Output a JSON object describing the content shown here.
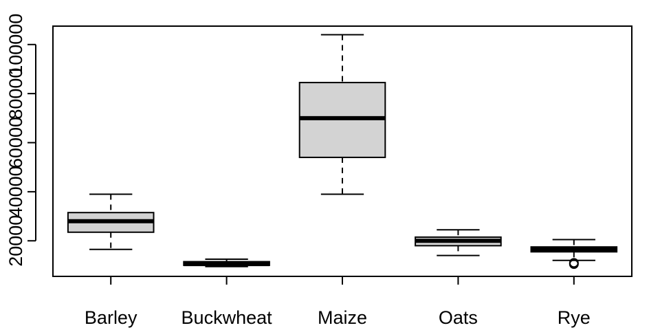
{
  "chart_data": {
    "type": "boxplot",
    "title": "",
    "xlabel": "",
    "ylabel": "",
    "ylim": [
      5500,
      107500
    ],
    "y_ticks": [
      20000,
      40000,
      60000,
      80000,
      100000
    ],
    "y_tick_labels": [
      "20000",
      "40000",
      "60000",
      "80000",
      "100000"
    ],
    "grid": false,
    "box_fill": "#d3d3d3",
    "categories": [
      "Barley",
      "Buckwheat",
      "Maize",
      "Oats",
      "Rye"
    ],
    "boxes": [
      {
        "category": "Barley",
        "whisker_low": 16500,
        "q1": 23500,
        "median": 28000,
        "q3": 31500,
        "whisker_high": 39000,
        "outliers": []
      },
      {
        "category": "Buckwheat",
        "whisker_low": 9500,
        "q1": 10000,
        "median": 10500,
        "q3": 11500,
        "whisker_high": 12500,
        "outliers": []
      },
      {
        "category": "Maize",
        "whisker_low": 39000,
        "q1": 54000,
        "median": 70000,
        "q3": 84500,
        "whisker_high": 104000,
        "outliers": []
      },
      {
        "category": "Oats",
        "whisker_low": 14000,
        "q1": 18000,
        "median": 20000,
        "q3": 21500,
        "whisker_high": 24500,
        "outliers": []
      },
      {
        "category": "Rye",
        "whisker_low": 12000,
        "q1": 15500,
        "median": 16500,
        "q3": 17500,
        "whisker_high": 20500,
        "outliers": [
          10500,
          11000
        ]
      }
    ]
  }
}
